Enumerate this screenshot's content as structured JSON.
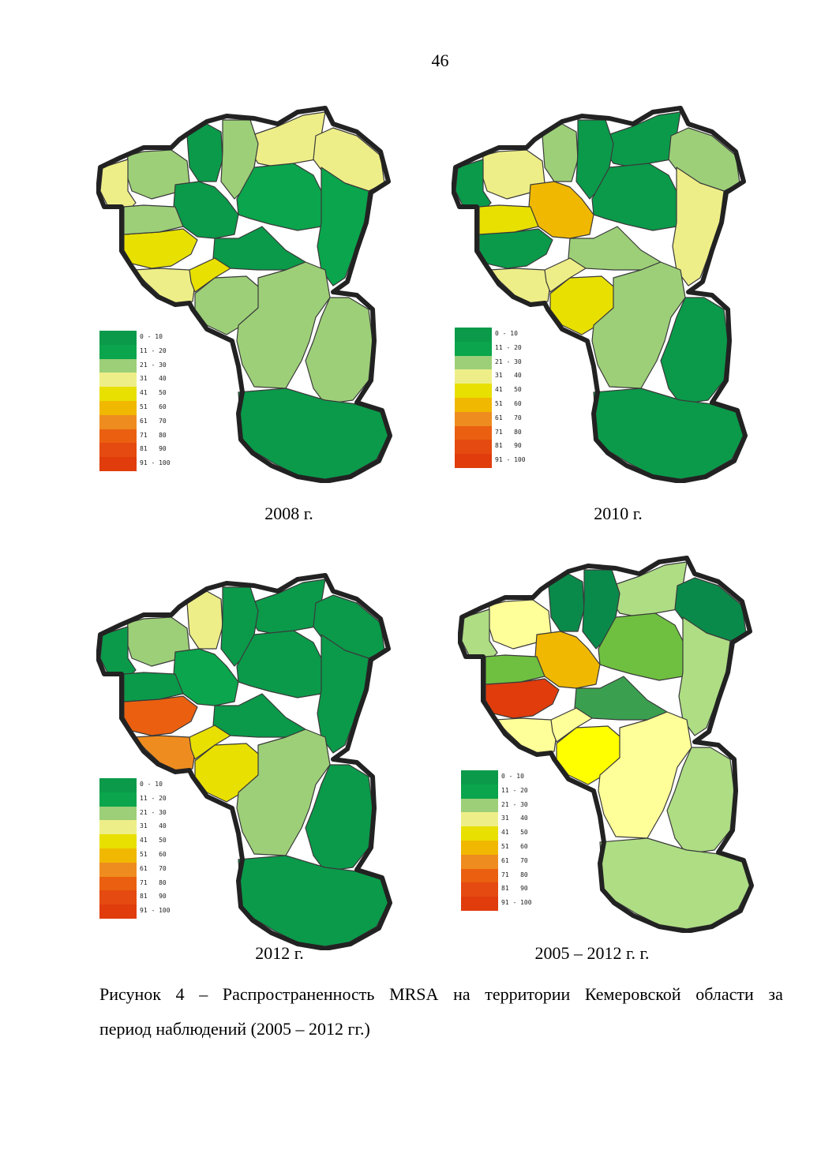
{
  "page_number": "46",
  "legend_items": [
    {
      "label": "0 - 10",
      "color": "#0a9a4a"
    },
    {
      "label": "11 - 20",
      "color": "#0aa54c"
    },
    {
      "label": "21 - 30",
      "color": "#9dcf78"
    },
    {
      "label": "31   40",
      "color": "#eeee88"
    },
    {
      "label": "41   50",
      "color": "#e8e000"
    },
    {
      "label": "51   60",
      "color": "#f0b800"
    },
    {
      "label": "61   70",
      "color": "#ef8c1f"
    },
    {
      "label": "71   80",
      "color": "#ea6010"
    },
    {
      "label": "81   90",
      "color": "#e54a10"
    },
    {
      "label": "91 - 100",
      "color": "#e03c0c"
    }
  ],
  "maps": [
    {
      "id": "2008",
      "label": "2008 г.",
      "fills": [
        "#9dcf78",
        "#0a9a4a",
        "#eeee88",
        "#eeee88",
        "#9dcf78",
        "#0a9a4a",
        "#eeee88",
        "#0aa54c",
        "#0aa54c",
        "#e8e000",
        "#9dcf78",
        "#0a9a4a",
        "#eeee88",
        "#9dcf78",
        "#e8e000",
        "#9dcf78",
        "#9dcf78",
        "#0a9a4a"
      ]
    },
    {
      "id": "2010",
      "label": "2010 г.",
      "fills": [
        "#eeee88",
        "#9dcf78",
        "#0a9a4a",
        "#0a9a4a",
        "#0a9a4a",
        "#f0b800",
        "#9dcf78",
        "#0a9a4a",
        "#eeee88",
        "#0a9a4a",
        "#e8e000",
        "#9dcf78",
        "#eeee88",
        "#e8e000",
        "#eeee88",
        "#9dcf78",
        "#0a9a4a",
        "#0a9a4a"
      ]
    },
    {
      "id": "2012",
      "label": "2012 г.",
      "fills": [
        "#9dcf78",
        "#eeee88",
        "#0a9a4a",
        "#0a9a4a",
        "#0a9a4a",
        "#0aa54c",
        "#0a9a4a",
        "#0a9a4a",
        "#0a9a4a",
        "#ea6010",
        "#0a9a4a",
        "#0a9a4a",
        "#ef8c1f",
        "#e8e000",
        "#e8e000",
        "#9dcf78",
        "#0a9a4a",
        "#0a9a4a"
      ]
    },
    {
      "id": "2005-2012",
      "label": "2005 – 2012 г. г.",
      "fills": [
        "#ffff99",
        "#0a8a4a",
        "#aedd84",
        "#aedd84",
        "#0a8a4a",
        "#f0b800",
        "#0a8a4a",
        "#6fc040",
        "#aedd84",
        "#e03c0c",
        "#6fc040",
        "#3aa050",
        "#ffff99",
        "#ffff00",
        "#ffff99",
        "#ffff99",
        "#aedd84",
        "#aedd84"
      ]
    }
  ],
  "caption": {
    "line1_words": [
      "Рисунок",
      "4",
      "–",
      "Распространенность",
      "MRSA",
      "на",
      "территории",
      "Кемеровской",
      "области",
      "за"
    ],
    "line2": "период наблюдений (2005 – 2012 гг.)"
  }
}
